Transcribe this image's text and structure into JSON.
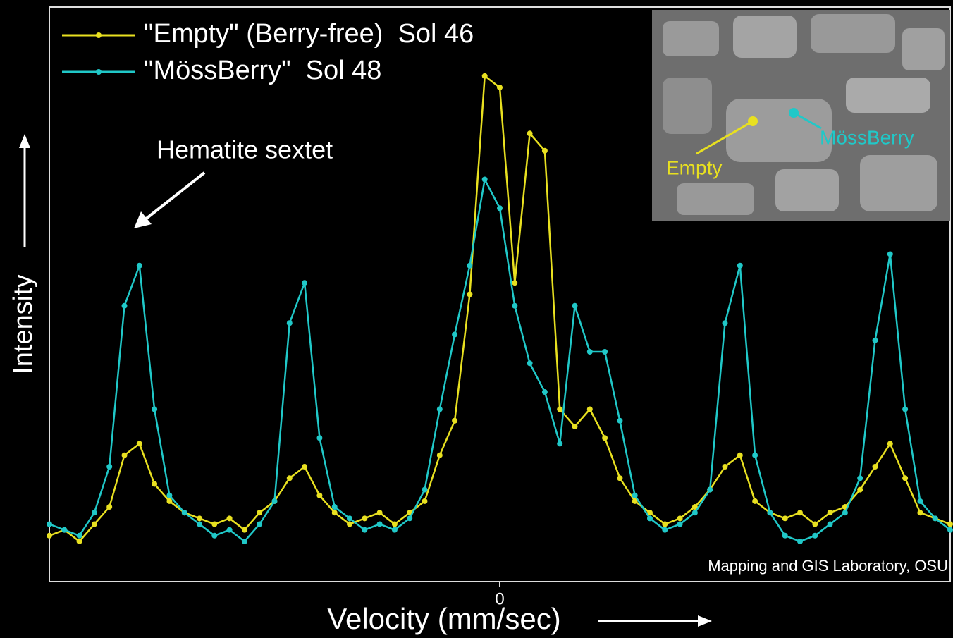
{
  "chart_data": {
    "type": "line",
    "x": [
      -12.0,
      -11.6,
      -11.2,
      -10.8,
      -10.4,
      -10.0,
      -9.6,
      -9.2,
      -8.8,
      -8.4,
      -8.0,
      -7.6,
      -7.2,
      -6.8,
      -6.4,
      -6.0,
      -5.6,
      -5.2,
      -4.8,
      -4.4,
      -4.0,
      -3.6,
      -3.2,
      -2.8,
      -2.4,
      -2.0,
      -1.6,
      -1.2,
      -0.8,
      -0.4,
      0.0,
      0.4,
      0.8,
      1.2,
      1.6,
      2.0,
      2.4,
      2.8,
      3.2,
      3.6,
      4.0,
      4.4,
      4.8,
      5.2,
      5.6,
      6.0,
      6.4,
      6.8,
      7.2,
      7.6,
      8.0,
      8.4,
      8.8,
      9.2,
      9.6,
      10.0,
      10.4,
      10.8,
      11.2,
      11.6,
      12.0
    ],
    "series": [
      {
        "name": "\"Empty\" (Berry-free)  Sol 46",
        "color": "#e8e020",
        "values": [
          8,
          9,
          7,
          10,
          13,
          22,
          24,
          17,
          14,
          12,
          11,
          10,
          11,
          9,
          12,
          14,
          18,
          20,
          15,
          12,
          10,
          11,
          12,
          10,
          12,
          14,
          22,
          28,
          50,
          88,
          86,
          52,
          78,
          75,
          30,
          27,
          30,
          25,
          18,
          14,
          12,
          10,
          11,
          13,
          16,
          20,
          22,
          14,
          12,
          11,
          12,
          10,
          12,
          13,
          16,
          20,
          24,
          18,
          12,
          11,
          10
        ]
      },
      {
        "name": "\"MössBerry\"  Sol 48",
        "color": "#20c8c8",
        "values": [
          10,
          9,
          8,
          12,
          20,
          48,
          55,
          30,
          15,
          12,
          10,
          8,
          9,
          7,
          10,
          14,
          45,
          52,
          25,
          13,
          11,
          9,
          10,
          9,
          11,
          16,
          30,
          43,
          55,
          70,
          65,
          48,
          38,
          33,
          24,
          48,
          40,
          40,
          28,
          15,
          11,
          9,
          10,
          12,
          16,
          45,
          55,
          22,
          12,
          8,
          7,
          8,
          10,
          12,
          18,
          42,
          57,
          30,
          14,
          11,
          9
        ]
      }
    ],
    "xlim": [
      -12,
      12
    ],
    "ylim": [
      0,
      100
    ],
    "xticks": [
      0
    ],
    "xlabel": "Velocity (mm/sec)",
    "ylabel": "Intensity",
    "annotation": "Hematite sextet",
    "credit": "Mapping and GIS Laboratory, OSU",
    "inset_labels": [
      "Empty",
      "MössBerry"
    ]
  }
}
